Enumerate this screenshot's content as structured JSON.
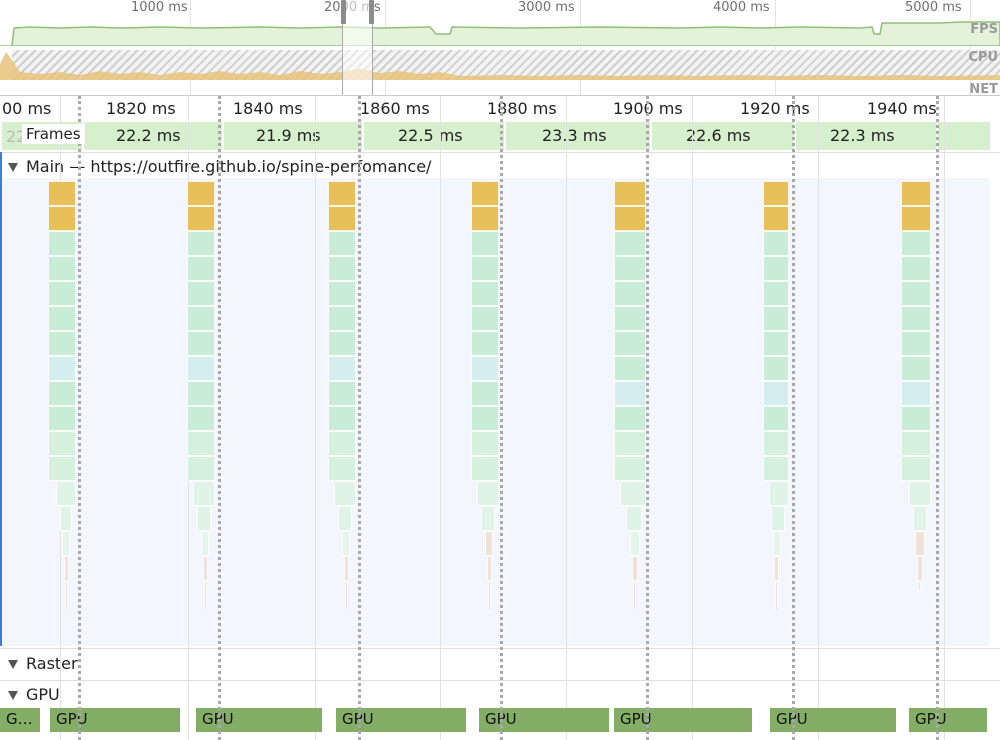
{
  "overview": {
    "ticks": [
      "1000 ms",
      "2000 ms",
      "3000 ms",
      "4000 ms",
      "5000 ms"
    ],
    "tracks": {
      "fps": "FPS",
      "cpu": "CPU",
      "net": "NET"
    }
  },
  "ruler": [
    "00 ms",
    "1820 ms",
    "1840 ms",
    "1860 ms",
    "1880 ms",
    "1900 ms",
    "1920 ms",
    "1940 ms"
  ],
  "frames": {
    "title": "Frames",
    "hidden_label": "22",
    "durations": [
      "22.2 ms",
      "21.9 ms",
      "22.5 ms",
      "23.3 ms",
      "22.6 ms",
      "22.3 ms"
    ]
  },
  "main": {
    "label": "Main — https://outfire.github.io/spine-perfomance/"
  },
  "raster": {
    "label": "Raster"
  },
  "gpu": {
    "label": "GPU",
    "bars": [
      "G…",
      "GPU",
      "GPU",
      "GPU",
      "GPU",
      "GPU",
      "GPU",
      "GPU"
    ]
  },
  "colors": {
    "scripting": "#e8c05a",
    "rendering": "#c9ecd7",
    "painting": "#a8d59a",
    "gpu": "#84ad66",
    "frame": "#d6efcc",
    "selection": "#3b7de0"
  }
}
